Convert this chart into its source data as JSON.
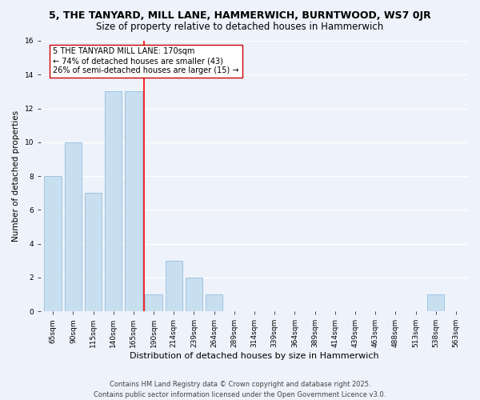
{
  "title": "5, THE TANYARD, MILL LANE, HAMMERWICH, BURNTWOOD, WS7 0JR",
  "subtitle": "Size of property relative to detached houses in Hammerwich",
  "xlabel": "Distribution of detached houses by size in Hammerwich",
  "ylabel": "Number of detached properties",
  "bar_labels": [
    "65sqm",
    "90sqm",
    "115sqm",
    "140sqm",
    "165sqm",
    "190sqm",
    "214sqm",
    "239sqm",
    "264sqm",
    "289sqm",
    "314sqm",
    "339sqm",
    "364sqm",
    "389sqm",
    "414sqm",
    "439sqm",
    "463sqm",
    "488sqm",
    "513sqm",
    "538sqm",
    "563sqm"
  ],
  "bar_values": [
    8,
    10,
    7,
    13,
    13,
    1,
    3,
    2,
    1,
    0,
    0,
    0,
    0,
    0,
    0,
    0,
    0,
    0,
    0,
    1,
    0
  ],
  "bar_color": "#c8dff0",
  "bar_edge_color": "#a0c4e0",
  "reference_line_x": 4.5,
  "reference_line_color": "red",
  "annotation_text": "5 THE TANYARD MILL LANE: 170sqm\n← 74% of detached houses are smaller (43)\n26% of semi-detached houses are larger (15) →",
  "annotation_box_color": "white",
  "annotation_box_edge": "#cc0000",
  "ylim": [
    0,
    16
  ],
  "yticks": [
    0,
    2,
    4,
    6,
    8,
    10,
    12,
    14,
    16
  ],
  "footer_line1": "Contains HM Land Registry data © Crown copyright and database right 2025.",
  "footer_line2": "Contains public sector information licensed under the Open Government Licence v3.0.",
  "background_color": "#eef2fa",
  "grid_color": "white",
  "title_fontsize": 9,
  "subtitle_fontsize": 8.5,
  "annotation_fontsize": 7,
  "xlabel_fontsize": 8,
  "ylabel_fontsize": 7.5,
  "tick_fontsize": 6.5,
  "footer_fontsize": 6
}
